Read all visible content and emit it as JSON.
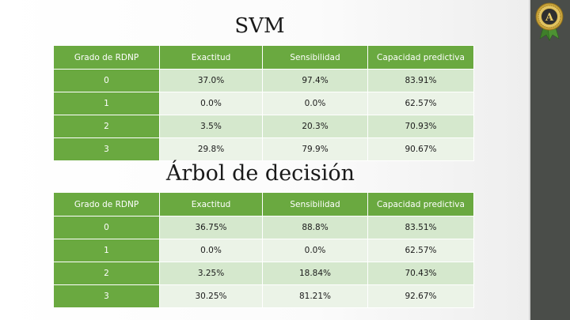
{
  "svm": {
    "title": "SVM",
    "headers": [
      "Grado de RDNP",
      "Exactitud",
      "Sensibilidad",
      "Capacidad predictiva"
    ],
    "rows": [
      [
        "0",
        "37.0%",
        "97.4%",
        "83.91%"
      ],
      [
        "1",
        "0.0%",
        "0.0%",
        "62.57%"
      ],
      [
        "2",
        "3.5%",
        "20.3%",
        "70.93%"
      ],
      [
        "3",
        "29.8%",
        "79.9%",
        "90.67%"
      ]
    ]
  },
  "tree": {
    "title": "Árbol de decisión",
    "headers": [
      "Grado de RDNP",
      "Exactitud",
      "Sensibilidad",
      "Capacidad predictiva"
    ],
    "rows": [
      [
        "0",
        "36.75%",
        "88.8%",
        "83.51%"
      ],
      [
        "1",
        "0.0%",
        "0.0%",
        "62.57%"
      ],
      [
        "2",
        "3.25%",
        "18.84%",
        "70.43%"
      ],
      [
        "3",
        "30.25%",
        "81.21%",
        "92.67%"
      ]
    ]
  },
  "badge": {
    "letter": "A",
    "icon": "award-seal-icon",
    "colors": {
      "seal": "#c9a33a",
      "ribbon": "#3f7f2a"
    }
  },
  "colors": {
    "header": "#6aa940",
    "row_dark": "#d5e8cd",
    "row_light": "#ebf3e7",
    "sidebar": "#4a4d49"
  }
}
